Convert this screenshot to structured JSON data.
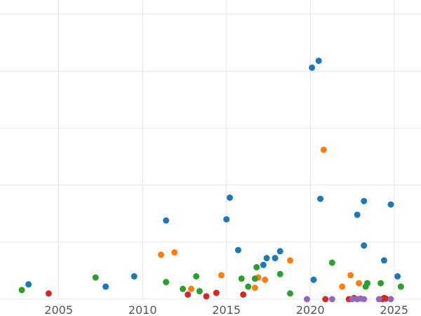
{
  "chart_data": {
    "type": "scatter",
    "title": "",
    "xlabel": "",
    "ylabel": "",
    "xlim": [
      2001.5,
      2026.6
    ],
    "ylim": [
      0,
      25
    ],
    "grid": true,
    "x_ticks": [
      2005,
      2010,
      2015,
      2020,
      2025
    ],
    "x_tick_labels": [
      "2005",
      "2010",
      "2015",
      "2020",
      "2025"
    ],
    "y_gridlines": [
      0,
      5,
      10,
      15,
      20,
      25
    ],
    "colors": {
      "blue": "#1f77b4",
      "orange": "#ff7f0e",
      "green": "#2ca02c",
      "red": "#d62728",
      "purple": "#9467bd",
      "grid": "#e5e5e5",
      "tick_text": "#555555"
    },
    "series": [
      {
        "color": "#1f77b4",
        "points": [
          [
            2003.2,
            1.3
          ],
          [
            2007.8,
            1.1
          ],
          [
            2009.5,
            2.0
          ],
          [
            2011.4,
            6.9
          ],
          [
            2015.0,
            7.0
          ],
          [
            2015.2,
            8.9
          ],
          [
            2015.7,
            4.3
          ],
          [
            2017.2,
            3.0
          ],
          [
            2017.4,
            3.6
          ],
          [
            2017.9,
            3.6
          ],
          [
            2018.2,
            4.2
          ],
          [
            2020.2,
            1.7
          ],
          [
            2020.1,
            20.3
          ],
          [
            2020.5,
            20.9
          ],
          [
            2020.6,
            8.8
          ],
          [
            2022.8,
            7.4
          ],
          [
            2023.2,
            8.6
          ],
          [
            2023.2,
            4.7
          ],
          [
            2024.4,
            3.4
          ],
          [
            2024.8,
            8.3
          ],
          [
            2025.2,
            2.0
          ]
        ]
      },
      {
        "color": "#ff7f0e",
        "points": [
          [
            2011.1,
            3.9
          ],
          [
            2011.9,
            4.1
          ],
          [
            2012.9,
            0.9
          ],
          [
            2014.7,
            2.1
          ],
          [
            2016.7,
            1.0
          ],
          [
            2016.9,
            1.9
          ],
          [
            2017.3,
            1.7
          ],
          [
            2018.8,
            3.4
          ],
          [
            2020.8,
            13.1
          ],
          [
            2021.9,
            1.1
          ],
          [
            2022.4,
            2.1
          ],
          [
            2022.9,
            1.4
          ]
        ]
      },
      {
        "color": "#2ca02c",
        "points": [
          [
            2002.8,
            0.8
          ],
          [
            2007.2,
            1.9
          ],
          [
            2011.4,
            1.5
          ],
          [
            2012.4,
            0.9
          ],
          [
            2013.2,
            2.0
          ],
          [
            2013.4,
            0.7
          ],
          [
            2015.9,
            1.8
          ],
          [
            2016.3,
            1.1
          ],
          [
            2016.7,
            1.8
          ],
          [
            2016.8,
            2.8
          ],
          [
            2018.2,
            2.2
          ],
          [
            2018.8,
            0.5
          ],
          [
            2021.3,
            3.2
          ],
          [
            2023.4,
            1.4
          ],
          [
            2023.3,
            1.1
          ],
          [
            2024.2,
            1.4
          ],
          [
            2025.4,
            1.1
          ]
        ]
      },
      {
        "color": "#d62728",
        "points": [
          [
            2004.4,
            0.5
          ],
          [
            2012.7,
            0.4
          ],
          [
            2013.8,
            0.25
          ],
          [
            2014.4,
            0.55
          ],
          [
            2016.0,
            0.4
          ],
          [
            2020.9,
            0.0
          ],
          [
            2022.3,
            0.0
          ],
          [
            2022.6,
            0.1
          ],
          [
            2024.3,
            0.0
          ],
          [
            2024.4,
            0.1
          ],
          [
            2024.5,
            0.05
          ]
        ]
      },
      {
        "color": "#9467bd",
        "points": [
          [
            2019.8,
            0.0
          ],
          [
            2021.3,
            0.0
          ],
          [
            2022.5,
            0.0
          ],
          [
            2022.8,
            0.0
          ],
          [
            2023.0,
            0.05
          ],
          [
            2023.2,
            0.0
          ],
          [
            2024.1,
            0.0
          ],
          [
            2024.8,
            0.0
          ]
        ]
      }
    ]
  }
}
